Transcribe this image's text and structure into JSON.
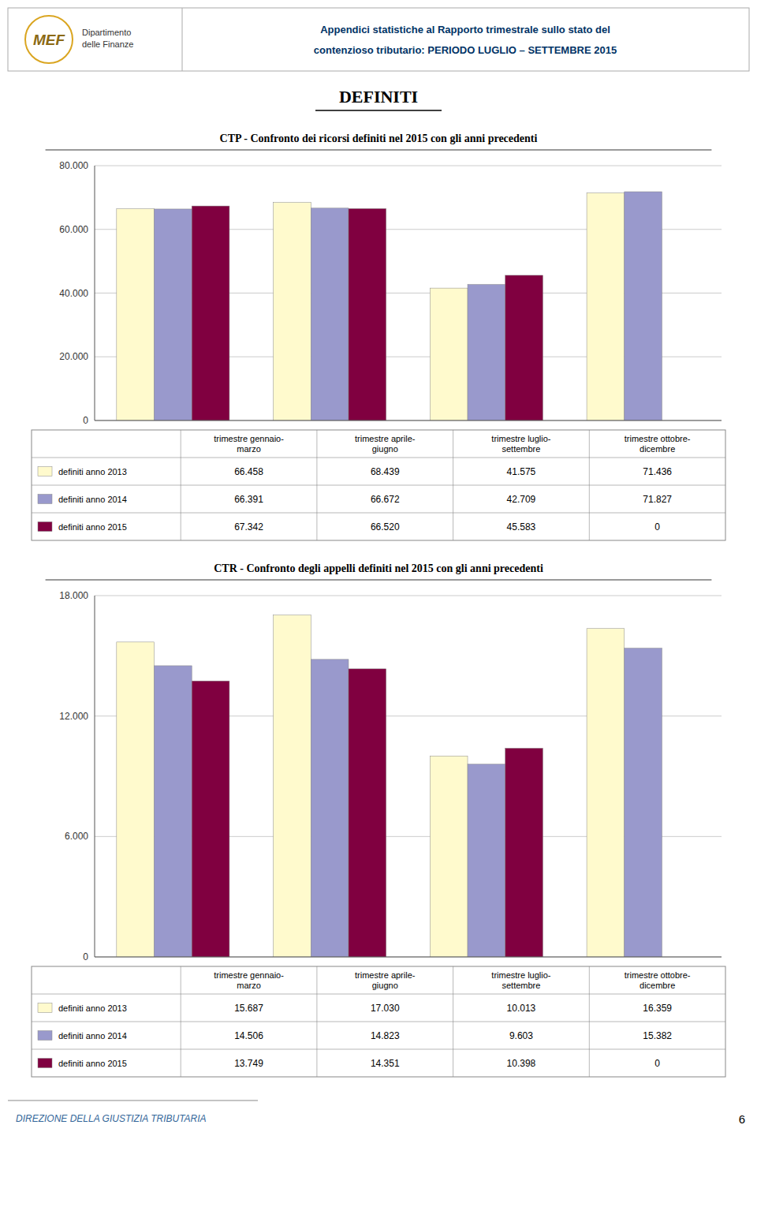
{
  "header": {
    "logo_text": "MEF",
    "logo_caption": [
      "Dipartimento",
      "delle Finanze"
    ],
    "title_line1": "Appendici statistiche al Rapporto trimestrale sullo stato del",
    "title_line2": [
      "contenzioso tributario: ",
      "PERIODO LUGLIO – SETTEMBRE 2015"
    ]
  },
  "section_title": "DEFINITI",
  "chart_data": [
    {
      "type": "bar",
      "title": "CTP - Confronto dei ricorsi definiti nel 2015 con gli anni precedenti",
      "categories": [
        "trimestre gennaio-\nmarzo",
        "trimestre aprile-\ngiugno",
        "trimestre luglio-\nsettembre",
        "trimestre ottobre-\ndicembre"
      ],
      "series": [
        {
          "name": "definiti anno 2013",
          "color": "#FFFACD",
          "values": [
            66458,
            68439,
            41575,
            71436
          ],
          "value_labels": [
            "66.458",
            "68.439",
            "41.575",
            "71.436"
          ]
        },
        {
          "name": "definiti anno 2014",
          "color": "#9999CC",
          "values": [
            66391,
            66672,
            42709,
            71827
          ],
          "value_labels": [
            "66.391",
            "66.672",
            "42.709",
            "71.827"
          ]
        },
        {
          "name": "definiti anno 2015",
          "color": "#800040",
          "values": [
            67342,
            66520,
            45583,
            0
          ],
          "value_labels": [
            "67.342",
            "66.520",
            "45.583",
            "0"
          ]
        }
      ],
      "ylim": [
        0,
        80000
      ],
      "yticks": [
        0,
        {
          "value": 20000,
          "label": "20.000"
        },
        {
          "value": 40000,
          "label": "40.000"
        },
        {
          "value": 60000,
          "label": "60.000"
        },
        {
          "value": 80000,
          "label": "80.000"
        }
      ],
      "grid": true,
      "tick_labels": "y"
    },
    {
      "type": "bar",
      "title": "CTR - Confronto degli appelli definiti nel 2015 con gli anni precedenti",
      "categories": [
        "trimestre gennaio-\nmarzo",
        "trimestre aprile-\ngiugno",
        "trimestre luglio-\nsettembre",
        "trimestre ottobre-\ndicembre"
      ],
      "series": [
        {
          "name": "definiti anno 2013",
          "color": "#FFFACD",
          "values": [
            15687,
            17030,
            10013,
            16359
          ],
          "value_labels": [
            "15.687",
            "17.030",
            "10.013",
            "16.359"
          ]
        },
        {
          "name": "definiti anno 2014",
          "color": "#9999CC",
          "values": [
            14506,
            14823,
            9603,
            15382
          ],
          "value_labels": [
            "14.506",
            "14.823",
            "9.603",
            "15.382"
          ]
        },
        {
          "name": "definiti anno 2015",
          "color": "#800040",
          "values": [
            13749,
            14351,
            10398,
            0
          ],
          "value_labels": [
            "13.749",
            "14.351",
            "10.398",
            "0"
          ]
        }
      ],
      "ylim": [
        0,
        18000
      ],
      "yticks": [
        0,
        {
          "value": 6000,
          "label": "6.000"
        },
        {
          "value": 12000,
          "label": "12.000"
        },
        {
          "value": 18000,
          "label": "18.000"
        }
      ],
      "grid": true,
      "tick_labels": "y"
    }
  ],
  "footer": {
    "text": "DIREZIONE DELLA GIUSTIZIA TRIBUTARIA",
    "page": "6"
  }
}
